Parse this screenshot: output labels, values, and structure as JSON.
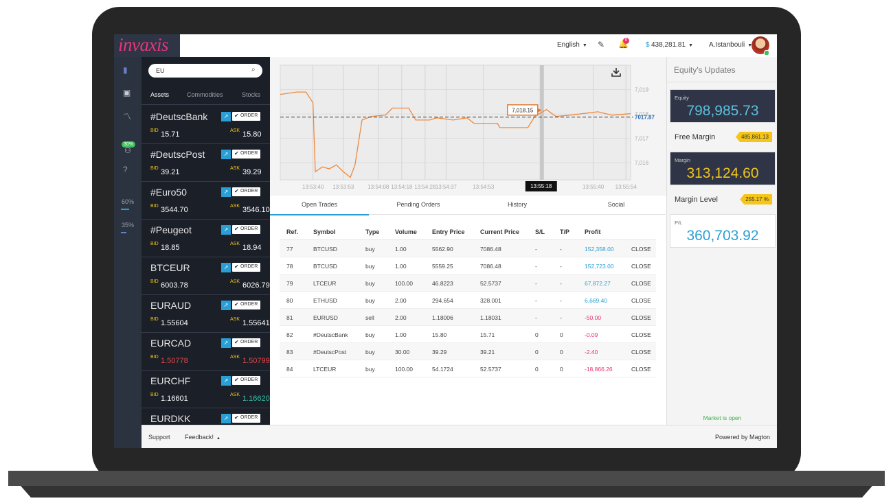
{
  "header": {
    "logo": "invaxis",
    "language": "English",
    "notifications": "0",
    "currency": "$",
    "balance": "438,281.81",
    "user": "A.Istanbouli"
  },
  "sidebar": {
    "badge": "30%",
    "levels": [
      "60%",
      "35%"
    ]
  },
  "assets": {
    "search": "EU",
    "tabs": [
      "Assets",
      "Commodities",
      "Stocks"
    ],
    "active_tab": 0,
    "order_label": "ORDER",
    "bid_label": "BID",
    "ask_label": "ASK",
    "items": [
      {
        "name": "#DeutscBank",
        "bid": "15.71",
        "ask": "15.80"
      },
      {
        "name": "#DeutscPost",
        "bid": "39.21",
        "ask": "39.29"
      },
      {
        "name": "#Euro50",
        "bid": "3544.70",
        "ask": "3546.10"
      },
      {
        "name": "#Peugeot",
        "bid": "18.85",
        "ask": "18.94"
      },
      {
        "name": "BTCEUR",
        "bid": "6003.78",
        "ask": "6026.79"
      },
      {
        "name": "EURAUD",
        "bid": "1.55604",
        "ask": "1.55641"
      },
      {
        "name": "EURCAD",
        "bid": "1.50778",
        "ask": "1.50799",
        "bid_color": "#e0474c",
        "ask_color": "#e0474c"
      },
      {
        "name": "EURCHF",
        "bid": "1.16601",
        "ask": "1.16620",
        "ask_color": "#3cc0a8"
      },
      {
        "name": "EURDKK"
      }
    ]
  },
  "chart": {
    "ylim": [
      7015.3,
      7020.0
    ],
    "yticks": [
      {
        "value": 7016,
        "label": "7,016"
      },
      {
        "value": 7017,
        "label": "7,017"
      },
      {
        "value": 7018,
        "label": "7,018"
      },
      {
        "value": 7019,
        "label": "7,019"
      }
    ],
    "xlim": [
      "13:53:26",
      "13:55:56"
    ],
    "xticks": [
      "13:53:40",
      "13:53:53",
      "13:54:08",
      "13:54:18",
      "13:54:28",
      "13:54:37",
      "13:54:53",
      "13:55:40",
      "13:55:54"
    ],
    "line": {
      "color": "#f0883a",
      "x": [
        "13:53:26",
        "13:53:33",
        "13:53:37",
        "13:53:40",
        "13:53:41",
        "13:53:44",
        "13:53:47",
        "13:53:50",
        "13:53:53",
        "13:53:56",
        "13:53:58",
        "13:54:01",
        "13:54:05",
        "13:54:11",
        "13:54:14",
        "13:54:21",
        "13:54:24",
        "13:54:30",
        "13:54:33",
        "13:54:40",
        "13:54:46",
        "13:54:49",
        "13:54:59",
        "13:55:00",
        "13:55:12",
        "13:55:15",
        "13:55:20",
        "13:55:24",
        "13:55:30",
        "13:55:42",
        "13:55:48",
        "13:55:56"
      ],
      "values": [
        7018.8,
        7018.9,
        7018.9,
        7018.46,
        7015.63,
        7015.83,
        7015.75,
        7015.91,
        7015.63,
        7015.4,
        7015.91,
        7017.75,
        7017.9,
        7017.95,
        7018.24,
        7018.24,
        7017.75,
        7017.75,
        7017.84,
        7017.75,
        7017.84,
        7017.61,
        7017.61,
        7017.44,
        7017.44,
        7017.9,
        7018.18,
        7017.9,
        7017.95,
        7018.09,
        7017.95,
        7018.01
      ]
    },
    "current": 7017.87,
    "tooltip": {
      "value": 7018.15,
      "label": "7,018.15"
    },
    "crosshair": "13:55:18"
  },
  "tabs": [
    "Open Trades",
    "Pending Orders",
    "History",
    "Social"
  ],
  "active_tab": 0,
  "table": {
    "headers": [
      "Ref.",
      "Symbol",
      "Type",
      "Volume",
      "Entry Price",
      "Current Price",
      "S/L",
      "T/P",
      "Profit"
    ],
    "close_label": "CLOSE",
    "profit_colors": {
      "positive": "#2a9fd6",
      "negative": "#e8336b"
    },
    "rows": [
      [
        "77",
        "BTCUSD",
        "buy",
        "1.00",
        "5562.90",
        "7086.48",
        "-",
        "-",
        "152,358.00"
      ],
      [
        "78",
        "BTCUSD",
        "buy",
        "1.00",
        "5559.25",
        "7086.48",
        "-",
        "-",
        "152,723.00"
      ],
      [
        "79",
        "LTCEUR",
        "buy",
        "100.00",
        "46.8223",
        "52.5737",
        "-",
        "-",
        "67,872.27"
      ],
      [
        "80",
        "ETHUSD",
        "buy",
        "2.00",
        "294.654",
        "328.001",
        "-",
        "-",
        "6,669.40"
      ],
      [
        "81",
        "EURUSD",
        "sell",
        "2.00",
        "1.18006",
        "1.18031",
        "-",
        "-",
        "-50.00"
      ],
      [
        "82",
        "#DeutscBank",
        "buy",
        "1.00",
        "15.80",
        "15.71",
        "0",
        "0",
        "-0.09"
      ],
      [
        "83",
        "#DeutscPost",
        "buy",
        "30.00",
        "39.29",
        "39.21",
        "0",
        "0",
        "-2.40"
      ],
      [
        "84",
        "LTCEUR",
        "buy",
        "100.00",
        "54.1724",
        "52.5737",
        "0",
        "0",
        "-18,866.26"
      ]
    ]
  },
  "equity": {
    "title": "Equity's Updates",
    "equity": {
      "label": "Equity",
      "value": "798,985.73"
    },
    "free_margin": {
      "label": "Free Margin",
      "value": "485,861.13"
    },
    "margin": {
      "label": "Margin",
      "value": "313,124.60"
    },
    "margin_level": {
      "label": "Margin Level",
      "value": "255.17 %"
    },
    "pl": {
      "label": "P/L",
      "value": "360,703.92"
    },
    "status": "Market is open"
  },
  "footer": {
    "support": "Support",
    "feedback": "Feedback!",
    "powered": "Powered by Magton"
  }
}
